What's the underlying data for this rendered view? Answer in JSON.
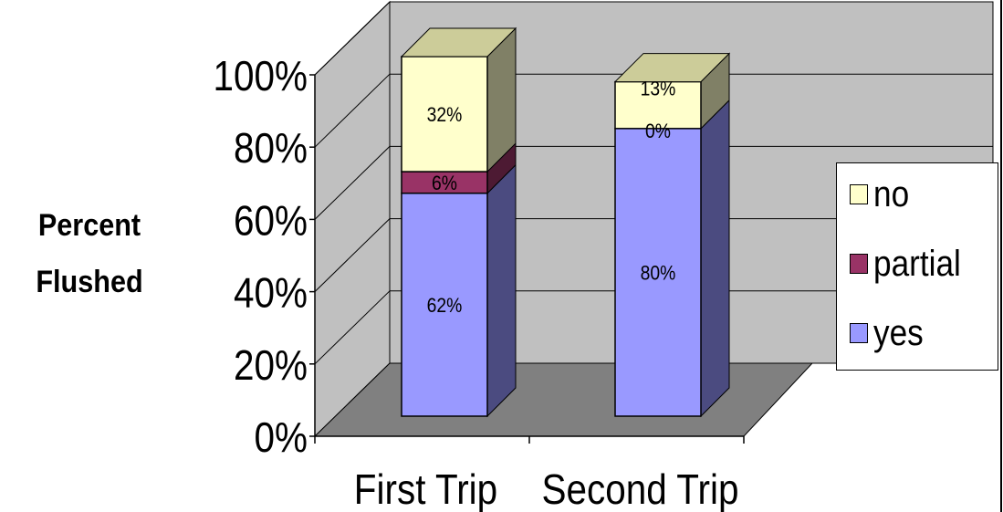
{
  "chart_data": {
    "type": "bar",
    "stacked": true,
    "three_d": true,
    "categories": [
      "First Trip",
      "Second Trip"
    ],
    "series": [
      {
        "name": "yes",
        "values": [
          62,
          80
        ],
        "labels": [
          "62%",
          "80%"
        ],
        "color": "#9999ff",
        "side_color": "#4b4b80"
      },
      {
        "name": "partial",
        "values": [
          6,
          0
        ],
        "labels": [
          "6%",
          "0%"
        ],
        "color": "#993366",
        "side_color": "#4d1a33"
      },
      {
        "name": "no",
        "values": [
          32,
          13
        ],
        "labels": [
          "32%",
          "13%"
        ],
        "color": "#ffffcc",
        "side_color": "#808066"
      }
    ],
    "ylabel": "Percent Flushed",
    "ylim": [
      0,
      100
    ],
    "yticks": [
      "0%",
      "20%",
      "40%",
      "60%",
      "80%",
      "100%"
    ],
    "grid": true,
    "legend_position": "right",
    "wall_color": "#c0c0c0",
    "floor_color": "#808080"
  },
  "ylabel_lines": [
    "Percent",
    "Flushed"
  ]
}
